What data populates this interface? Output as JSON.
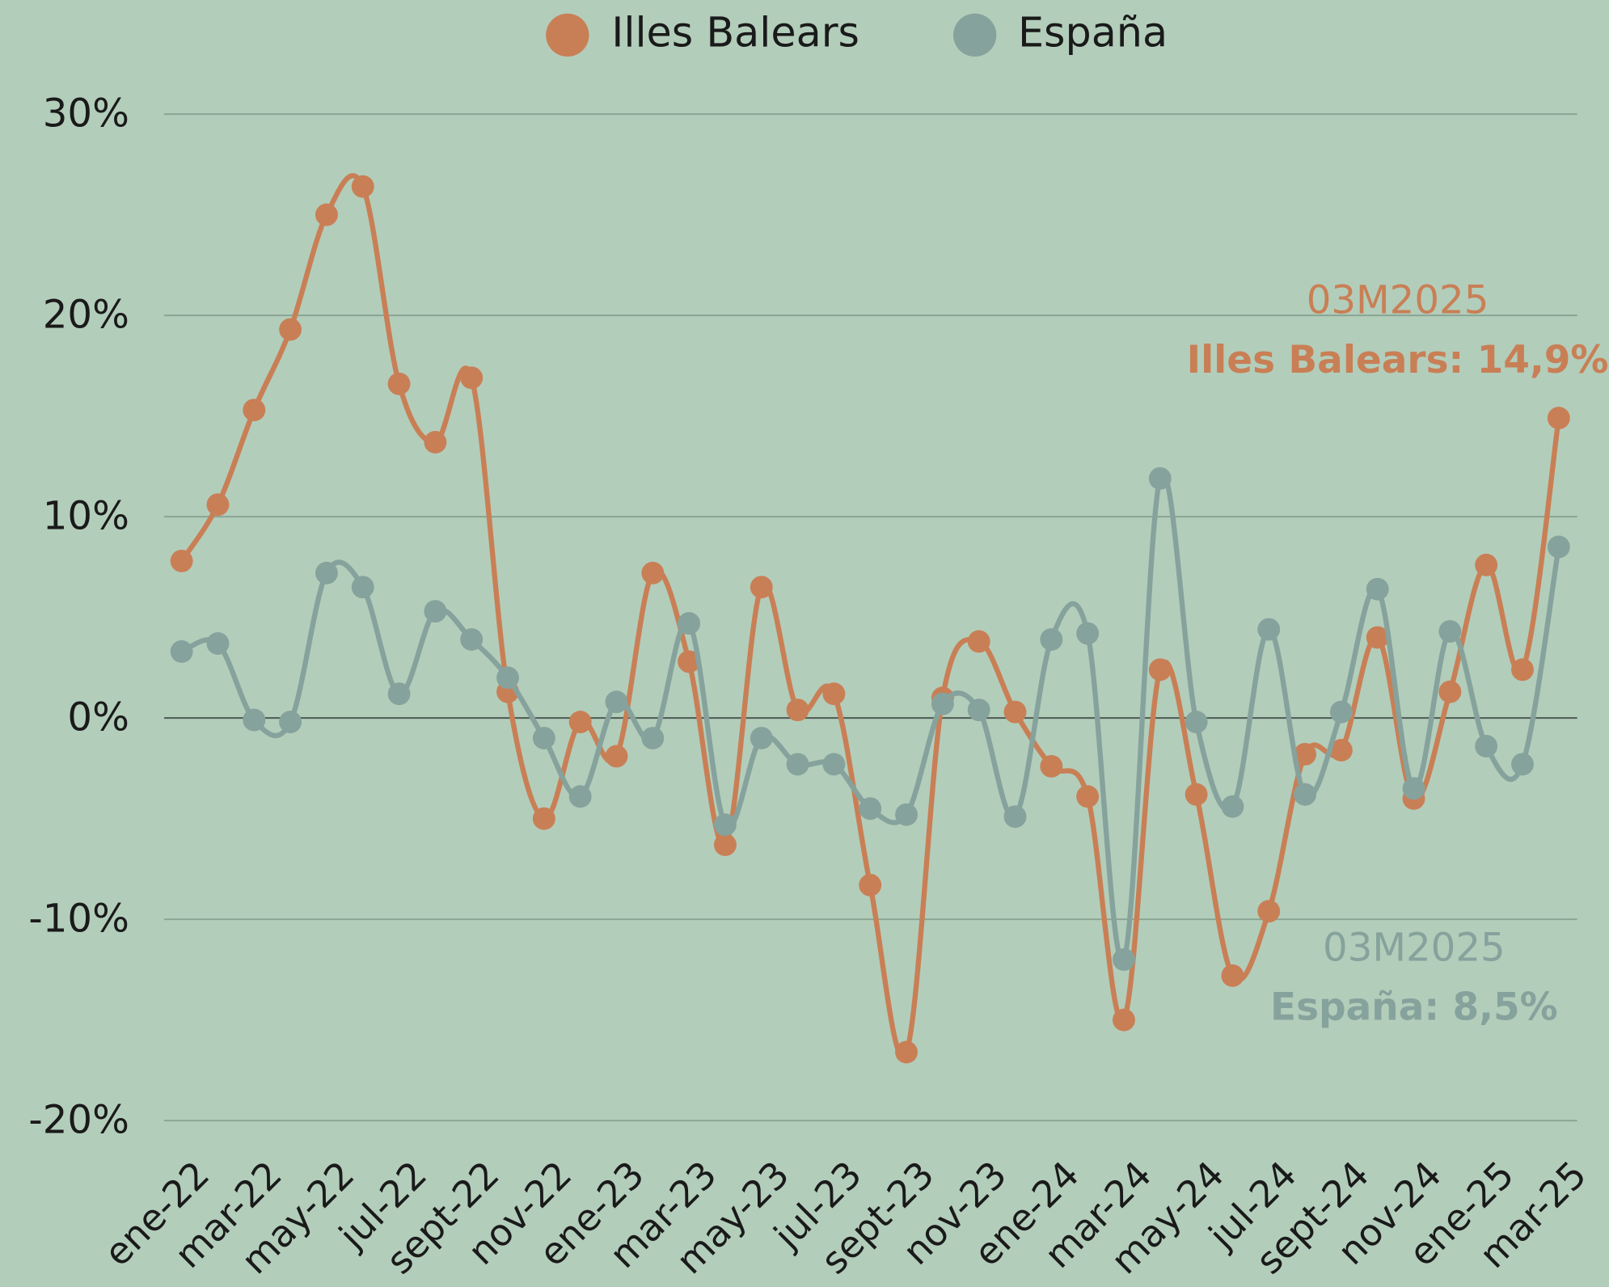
{
  "chart_data": {
    "type": "line",
    "categories": [
      "ene-22",
      null,
      "mar-22",
      null,
      "may-22",
      null,
      "jul-22",
      null,
      "sept-22",
      null,
      "nov-22",
      null,
      "ene-23",
      null,
      "mar-23",
      null,
      "may-23",
      null,
      "jul-23",
      null,
      "sept-23",
      null,
      "nov-23",
      null,
      "ene-24",
      null,
      "mar-24",
      null,
      "may-24",
      null,
      "jul-24",
      null,
      "sept-24",
      null,
      "nov-24",
      null,
      "ene-25",
      null,
      "mar-25"
    ],
    "series": [
      {
        "name": "Illes Balears",
        "color": "#c97f55",
        "values": [
          7.8,
          10.6,
          15.3,
          19.3,
          25.0,
          26.4,
          16.6,
          13.7,
          16.9,
          1.3,
          -5.0,
          -0.2,
          -1.9,
          7.2,
          2.8,
          -6.3,
          6.5,
          0.4,
          1.2,
          -8.3,
          -16.6,
          1.0,
          3.8,
          0.3,
          -2.4,
          -3.9,
          -15.0,
          2.4,
          -3.8,
          -12.8,
          -9.6,
          -1.8,
          -1.6,
          4.0,
          -4.0,
          1.3,
          7.6,
          2.4,
          14.9
        ]
      },
      {
        "name": "España",
        "color": "#86a29c",
        "values": [
          3.3,
          3.7,
          -0.1,
          -0.2,
          7.2,
          6.5,
          1.2,
          5.3,
          3.9,
          2.0,
          -1.0,
          -3.9,
          0.8,
          -1.0,
          4.7,
          -5.3,
          -1.0,
          -2.3,
          -2.3,
          -4.5,
          -4.8,
          0.7,
          0.4,
          -4.9,
          3.9,
          4.2,
          -12.0,
          11.9,
          -0.2,
          -4.4,
          4.4,
          -3.8,
          0.3,
          6.4,
          -3.5,
          4.3,
          -1.4,
          -2.3,
          8.5
        ]
      }
    ],
    "ylim": [
      -20,
      30
    ],
    "yticks": [
      {
        "value": -20,
        "label": "-20%"
      },
      {
        "value": -10,
        "label": "-10%"
      },
      {
        "value": 0,
        "label": "0%"
      },
      {
        "value": 10,
        "label": "10%"
      },
      {
        "value": 20,
        "label": "20%"
      },
      {
        "value": 30,
        "label": "30%"
      }
    ],
    "grid": true,
    "legend": "top",
    "annotations": [
      {
        "series": 0,
        "period": "03M2025",
        "text": "Illes Balears: 14,9%"
      },
      {
        "series": 1,
        "period": "03M2025",
        "text": "España: 8,5%"
      }
    ]
  }
}
